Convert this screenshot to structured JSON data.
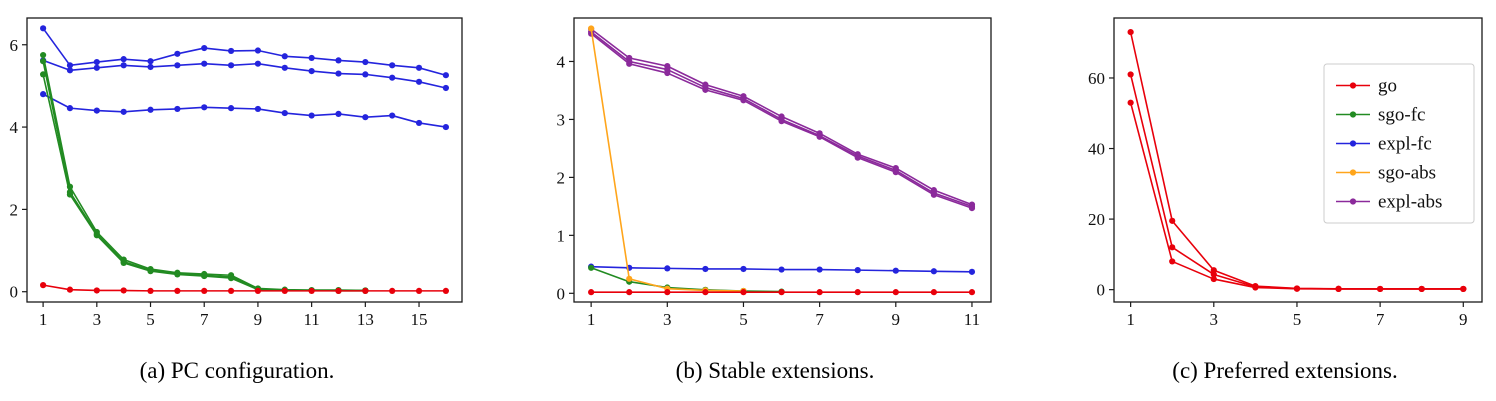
{
  "colors": {
    "go": "#e8000b",
    "sgo-fc": "#228b22",
    "expl-fc": "#2424dd",
    "sgo-abs": "#ffa51b",
    "expl-abs": "#8b2a9b",
    "frame": "#1a1a1a",
    "tick_label": "#111111",
    "legend_border": "#cccccc",
    "background": "#ffffff"
  },
  "legend": {
    "entries": [
      "go",
      "sgo-fc",
      "expl-fc",
      "sgo-abs",
      "expl-abs"
    ],
    "position": "upper-right"
  },
  "chart_data": [
    {
      "id": "a",
      "type": "line",
      "caption": "(a) PC configuration.",
      "title": "",
      "xlabel": "",
      "ylabel": "",
      "grid": false,
      "legend": false,
      "xlim": [
        0.4,
        16.6
      ],
      "ylim": [
        -0.25,
        6.65
      ],
      "xticks": [
        1,
        3,
        5,
        7,
        9,
        11,
        13,
        15
      ],
      "yticks": [
        0,
        2,
        4,
        6
      ],
      "series": [
        {
          "name": "expl-fc",
          "run": 1,
          "x": [
            1,
            2,
            3,
            4,
            5,
            6,
            7,
            8,
            9,
            10,
            11,
            12,
            13,
            14,
            15,
            16
          ],
          "y": [
            6.4,
            5.5,
            5.58,
            5.65,
            5.6,
            5.78,
            5.92,
            5.85,
            5.86,
            5.72,
            5.68,
            5.62,
            5.58,
            5.5,
            5.44,
            5.26
          ]
        },
        {
          "name": "expl-fc",
          "run": 2,
          "x": [
            1,
            2,
            3,
            4,
            5,
            6,
            7,
            8,
            9,
            10,
            11,
            12,
            13,
            14,
            15,
            16
          ],
          "y": [
            5.62,
            5.38,
            5.44,
            5.5,
            5.46,
            5.5,
            5.54,
            5.5,
            5.54,
            5.44,
            5.36,
            5.3,
            5.28,
            5.2,
            5.1,
            4.95
          ]
        },
        {
          "name": "expl-fc",
          "run": 3,
          "x": [
            1,
            2,
            3,
            4,
            5,
            6,
            7,
            8,
            9,
            10,
            11,
            12,
            13,
            14,
            15,
            16
          ],
          "y": [
            4.8,
            4.46,
            4.4,
            4.37,
            4.42,
            4.44,
            4.48,
            4.46,
            4.44,
            4.34,
            4.28,
            4.32,
            4.24,
            4.28,
            4.1,
            4.0
          ]
        },
        {
          "name": "sgo-fc",
          "run": 1,
          "x": [
            1,
            2,
            3,
            4,
            5,
            6,
            7,
            8,
            9,
            10,
            11,
            12,
            13
          ],
          "y": [
            5.75,
            2.55,
            1.45,
            0.78,
            0.55,
            0.46,
            0.43,
            0.4,
            0.08,
            0.05,
            0.04,
            0.04,
            0.03
          ]
        },
        {
          "name": "sgo-fc",
          "run": 2,
          "x": [
            1,
            2,
            3,
            4,
            5,
            6,
            7,
            8,
            9,
            10,
            11,
            12,
            13
          ],
          "y": [
            5.6,
            2.42,
            1.4,
            0.73,
            0.52,
            0.44,
            0.4,
            0.36,
            0.06,
            0.04,
            0.03,
            0.03,
            0.03
          ]
        },
        {
          "name": "sgo-fc",
          "run": 3,
          "x": [
            1,
            2,
            3,
            4,
            5,
            6,
            7,
            8,
            9,
            10,
            11,
            12,
            13
          ],
          "y": [
            5.28,
            2.36,
            1.37,
            0.7,
            0.5,
            0.42,
            0.38,
            0.33,
            0.05,
            0.03,
            0.03,
            0.02,
            0.02
          ]
        },
        {
          "name": "go",
          "run": 1,
          "x": [
            1,
            2,
            3,
            4,
            5,
            6,
            7,
            8,
            9,
            10,
            11,
            12,
            13,
            14,
            15,
            16
          ],
          "y": [
            0.16,
            0.05,
            0.03,
            0.03,
            0.02,
            0.02,
            0.02,
            0.02,
            0.02,
            0.02,
            0.02,
            0.02,
            0.02,
            0.02,
            0.02,
            0.02
          ]
        }
      ]
    },
    {
      "id": "b",
      "type": "line",
      "caption": "(b) Stable extensions.",
      "title": "",
      "xlabel": "",
      "ylabel": "",
      "grid": false,
      "legend": false,
      "xlim": [
        0.55,
        11.5
      ],
      "ylim": [
        -0.15,
        4.75
      ],
      "xticks": [
        1,
        3,
        5,
        7,
        9,
        11
      ],
      "yticks": [
        0,
        1,
        2,
        3,
        4
      ],
      "series": [
        {
          "name": "expl-abs",
          "run": 1,
          "x": [
            1,
            2,
            3,
            4,
            5,
            6,
            7,
            8,
            9,
            10,
            11
          ],
          "y": [
            4.56,
            4.06,
            3.92,
            3.6,
            3.4,
            3.05,
            2.76,
            2.4,
            2.16,
            1.78,
            1.53
          ]
        },
        {
          "name": "expl-abs",
          "run": 2,
          "x": [
            1,
            2,
            3,
            4,
            5,
            6,
            7,
            8,
            9,
            10,
            11
          ],
          "y": [
            4.51,
            4.0,
            3.86,
            3.55,
            3.36,
            3.0,
            2.72,
            2.37,
            2.12,
            1.73,
            1.5
          ]
        },
        {
          "name": "expl-abs",
          "run": 3,
          "x": [
            1,
            2,
            3,
            4,
            5,
            6,
            7,
            8,
            9,
            10,
            11
          ],
          "y": [
            4.48,
            3.96,
            3.8,
            3.51,
            3.33,
            2.97,
            2.7,
            2.34,
            2.09,
            1.7,
            1.47
          ]
        },
        {
          "name": "expl-fc",
          "run": 1,
          "x": [
            1,
            2,
            3,
            4,
            5,
            6,
            7,
            8,
            9,
            10,
            11
          ],
          "y": [
            0.46,
            0.44,
            0.43,
            0.42,
            0.42,
            0.41,
            0.41,
            0.4,
            0.39,
            0.38,
            0.37
          ]
        },
        {
          "name": "sgo-fc",
          "run": 1,
          "x": [
            1,
            2,
            3,
            4,
            5,
            6
          ],
          "y": [
            0.44,
            0.2,
            0.1,
            0.06,
            0.04,
            0.03
          ]
        },
        {
          "name": "sgo-abs",
          "run": 1,
          "x": [
            1,
            2,
            3,
            4,
            5
          ],
          "y": [
            4.57,
            0.25,
            0.08,
            0.05,
            0.04
          ]
        },
        {
          "name": "go",
          "run": 1,
          "x": [
            1,
            2,
            3,
            4,
            5,
            6,
            7,
            8,
            9,
            10,
            11
          ],
          "y": [
            0.02,
            0.02,
            0.02,
            0.02,
            0.02,
            0.02,
            0.02,
            0.02,
            0.02,
            0.02,
            0.02
          ]
        }
      ]
    },
    {
      "id": "c",
      "type": "line",
      "caption": "(c) Preferred extensions.",
      "title": "",
      "xlabel": "",
      "ylabel": "",
      "grid": false,
      "legend": true,
      "xlim": [
        0.6,
        9.45
      ],
      "ylim": [
        -3.5,
        77
      ],
      "xticks": [
        1,
        3,
        5,
        7,
        9
      ],
      "yticks": [
        0,
        20,
        40,
        60
      ],
      "series": [
        {
          "name": "go",
          "run": 1,
          "x": [
            1,
            2,
            3,
            4,
            5,
            6,
            7,
            8,
            9
          ],
          "y": [
            73,
            19.5,
            5.5,
            1.0,
            0.35,
            0.25,
            0.2,
            0.2,
            0.2
          ]
        },
        {
          "name": "go",
          "run": 2,
          "x": [
            1,
            2,
            3,
            4,
            5,
            6,
            7,
            8,
            9
          ],
          "y": [
            61,
            12,
            4.3,
            0.8,
            0.3,
            0.2,
            0.2,
            0.2,
            0.2
          ]
        },
        {
          "name": "go",
          "run": 3,
          "x": [
            1,
            2,
            3,
            4,
            5,
            6,
            7,
            8,
            9
          ],
          "y": [
            53,
            8,
            3.0,
            0.6,
            0.25,
            0.2,
            0.2,
            0.2,
            0.2
          ]
        }
      ]
    }
  ]
}
